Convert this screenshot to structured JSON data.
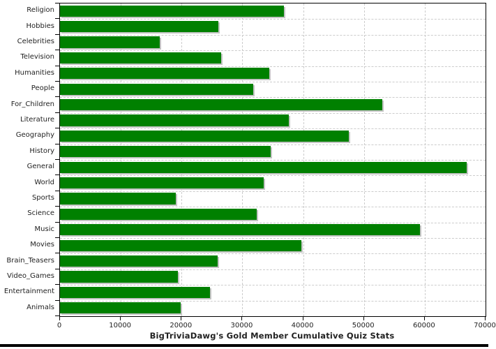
{
  "chart_data": {
    "type": "bar",
    "orientation": "horizontal",
    "title": "BigTriviaDawg's Gold Member Cumulative Quiz Stats",
    "xlabel": "",
    "ylabel": "",
    "categories": [
      "Religion",
      "Hobbies",
      "Celebrities",
      "Television",
      "Humanities",
      "People",
      "For_Children",
      "Literature",
      "Geography",
      "History",
      "General",
      "World",
      "Sports",
      "Science",
      "Music",
      "Movies",
      "Brain_Teasers",
      "Video_Games",
      "Entertainment",
      "Animals"
    ],
    "values": [
      36800,
      26000,
      16400,
      26500,
      34400,
      31800,
      53000,
      37600,
      47500,
      34600,
      66900,
      33500,
      19100,
      32400,
      59200,
      39700,
      25900,
      19400,
      24700,
      19800
    ],
    "xlim": [
      0,
      70000
    ],
    "xticks": [
      0,
      10000,
      20000,
      30000,
      40000,
      50000,
      60000,
      70000
    ],
    "grid": true,
    "legend": false,
    "bar_color": "#008000",
    "bar_shadow_color": "#c4c4c4",
    "gridline_color": "#cccccc",
    "axis_color": "#000000",
    "text_color": "#222222",
    "background_color": "#ffffff"
  }
}
